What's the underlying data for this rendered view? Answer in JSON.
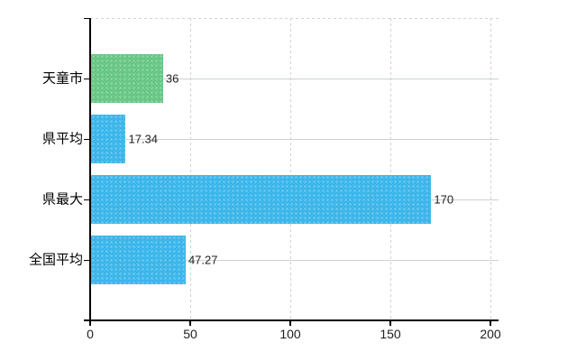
{
  "chart_data": {
    "type": "bar",
    "orientation": "horizontal",
    "title": "",
    "categories": [
      "天童市",
      "県平均",
      "県最大",
      "全国平均"
    ],
    "values": [
      36,
      17.34,
      170,
      47.27
    ],
    "value_labels": [
      "36",
      "17.34",
      "170",
      "47.27"
    ],
    "bar_colors": [
      "#6CCD8A",
      "#3FBCF1",
      "#3FBCF1",
      "#3FBCF1"
    ],
    "xticks": [
      0,
      50,
      100,
      150,
      200
    ],
    "xtick_labels": [
      "0",
      "50",
      "100",
      "150",
      "200"
    ],
    "xlim": [
      0,
      200
    ],
    "xlabel": "",
    "ylabel": "",
    "legend": "none",
    "grid": {
      "horizontal_style": "solid",
      "vertical_style": "dashed",
      "top_border_style": "dashed"
    }
  },
  "colors": {
    "bar_green": "#6CCD8A",
    "bar_blue": "#3FBCF1",
    "grid_horizontal": "#ccd4cb",
    "grid_vertical": "#d7ced6",
    "axis": "#000000",
    "label_text": "#1f1f1f"
  }
}
